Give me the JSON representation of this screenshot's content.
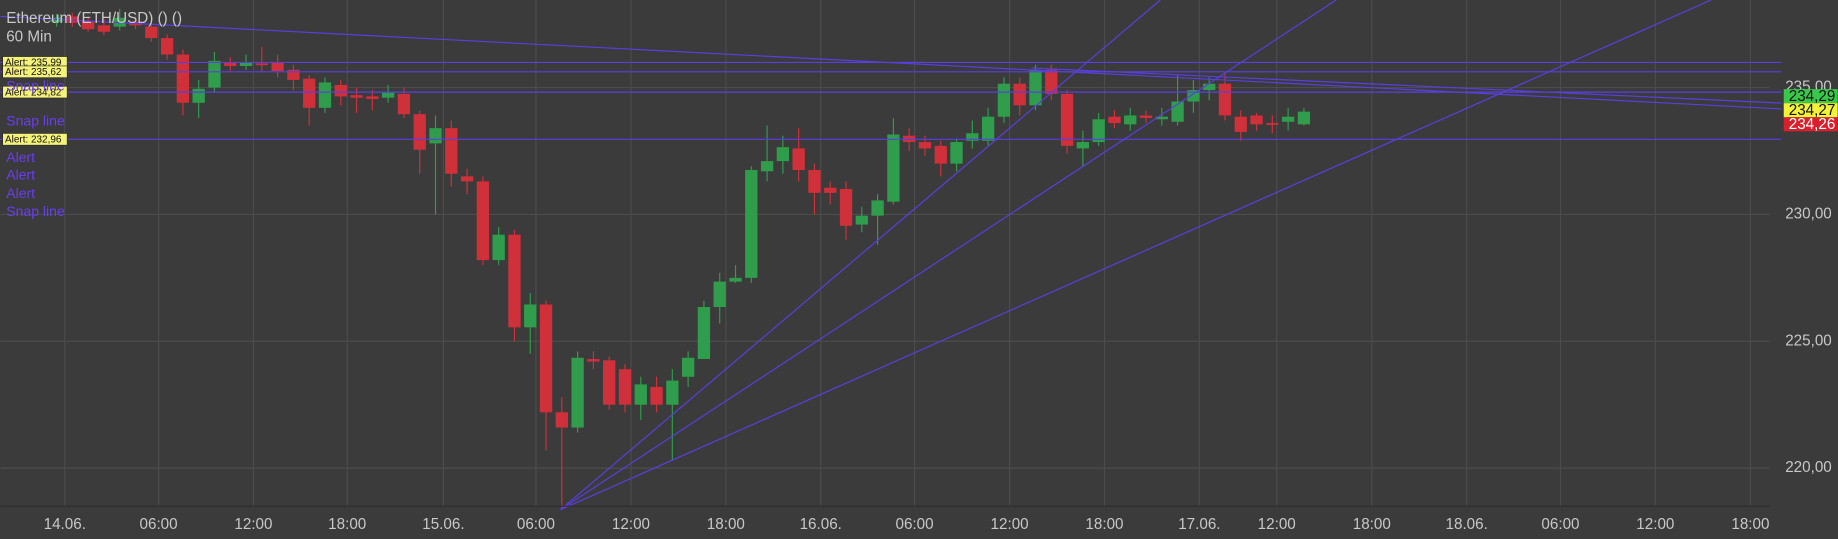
{
  "chart_data": {
    "type": "candlestick",
    "title": "Ethereum (ETH/USD) () ()",
    "subtitle": "60 Min",
    "categories": [
      null,
      null,
      null,
      null,
      null,
      null,
      null,
      null,
      null,
      null,
      null,
      null,
      null,
      null,
      null,
      null,
      null,
      null,
      null,
      null,
      null,
      null,
      null,
      null,
      null,
      null,
      null,
      null,
      null,
      null,
      null,
      null,
      null,
      null,
      null,
      null,
      null,
      null,
      null,
      null,
      null,
      null,
      null,
      null,
      null,
      null,
      null,
      null,
      null,
      null,
      null,
      null,
      null,
      null,
      null,
      null,
      null,
      null,
      null,
      null,
      null,
      null,
      null,
      null,
      null,
      null,
      null,
      null,
      null,
      null,
      null,
      null,
      null,
      null,
      null,
      null,
      null,
      null,
      null,
      null
    ],
    "open": [
      237.6,
      237.8,
      237.6,
      237.45,
      237.4,
      237.6,
      237.4,
      236.95,
      236.3,
      234.4,
      235.0,
      236.0,
      235.85,
      235.95,
      236.0,
      235.7,
      235.35,
      234.2,
      235.1,
      234.7,
      234.65,
      234.6,
      234.75,
      233.95,
      232.8,
      233.4,
      231.5,
      231.3,
      228.2,
      229.2,
      225.55,
      226.45,
      222.2,
      221.6,
      224.3,
      224.25,
      223.9,
      222.5,
      223.2,
      222.5,
      223.6,
      224.3,
      226.35,
      227.35,
      227.5,
      231.7,
      232.1,
      232.6,
      231.75,
      231.05,
      231.0,
      229.6,
      229.95,
      230.5,
      233.1,
      232.85,
      232.7,
      232.0,
      232.9,
      232.9,
      233.85,
      235.15,
      234.3,
      235.7,
      234.75,
      232.6,
      232.85,
      233.85,
      233.55,
      233.9,
      233.75,
      233.65,
      234.45,
      234.9,
      235.15,
      233.85,
      233.9,
      233.6,
      233.65,
      233.55
    ],
    "high": [
      237.9,
      237.95,
      237.8,
      237.7,
      238.1,
      237.8,
      237.6,
      237.1,
      236.5,
      235.3,
      236.4,
      236.2,
      236.3,
      236.6,
      236.3,
      235.9,
      235.5,
      235.4,
      235.3,
      235.0,
      234.9,
      235.1,
      235.0,
      234.1,
      233.9,
      233.7,
      231.8,
      231.5,
      229.5,
      229.4,
      226.9,
      226.6,
      222.8,
      224.6,
      224.6,
      224.4,
      224.1,
      223.6,
      223.6,
      223.9,
      224.6,
      226.6,
      227.7,
      228.0,
      231.9,
      233.5,
      233.1,
      233.4,
      232.0,
      231.3,
      231.3,
      230.3,
      230.8,
      233.8,
      233.4,
      233.1,
      232.9,
      233.0,
      233.7,
      234.2,
      235.4,
      235.4,
      235.9,
      235.9,
      234.9,
      233.3,
      234.0,
      234.1,
      234.2,
      234.1,
      234.2,
      235.5,
      235.3,
      235.4,
      235.6,
      234.1,
      234.0,
      233.9,
      234.2,
      234.2
    ],
    "low": [
      237.4,
      237.4,
      237.2,
      237.05,
      237.25,
      237.3,
      236.8,
      236.1,
      233.9,
      233.8,
      234.8,
      235.6,
      235.7,
      235.6,
      235.4,
      234.9,
      233.5,
      234.0,
      234.3,
      234.0,
      234.1,
      234.4,
      233.8,
      231.6,
      230.0,
      231.1,
      230.8,
      228.0,
      228.0,
      225.0,
      224.5,
      220.7,
      218.4,
      221.4,
      223.9,
      222.3,
      222.2,
      221.9,
      222.2,
      220.3,
      223.2,
      224.3,
      225.7,
      227.3,
      227.3,
      231.3,
      231.6,
      231.3,
      230.0,
      230.4,
      229.0,
      229.3,
      228.8,
      230.4,
      232.5,
      232.3,
      231.5,
      231.7,
      232.6,
      232.7,
      233.6,
      233.9,
      234.1,
      234.5,
      232.4,
      231.9,
      232.7,
      233.4,
      233.3,
      233.6,
      233.5,
      233.5,
      234.0,
      234.5,
      233.7,
      232.9,
      233.3,
      233.2,
      233.3,
      233.5
    ],
    "close": [
      237.75,
      237.55,
      237.3,
      237.2,
      237.75,
      237.45,
      236.95,
      236.3,
      234.4,
      234.95,
      236.05,
      235.85,
      236.0,
      235.9,
      235.65,
      235.3,
      234.2,
      235.2,
      234.65,
      234.6,
      234.55,
      234.8,
      233.95,
      232.55,
      233.4,
      231.6,
      231.3,
      228.2,
      229.2,
      225.55,
      226.45,
      222.2,
      221.6,
      224.35,
      224.2,
      222.5,
      222.5,
      223.3,
      222.5,
      223.45,
      224.35,
      226.35,
      227.35,
      227.5,
      231.75,
      232.1,
      232.65,
      231.75,
      230.85,
      230.85,
      229.55,
      229.95,
      230.55,
      233.15,
      232.85,
      232.6,
      232.0,
      232.85,
      233.2,
      233.85,
      235.15,
      234.3,
      235.7,
      234.75,
      232.7,
      232.85,
      233.75,
      233.6,
      233.9,
      233.8,
      233.85,
      234.45,
      234.9,
      235.15,
      233.9,
      233.25,
      233.55,
      233.55,
      233.85,
      234.05
    ],
    "up_color": "#2f9d4b",
    "down_color": "#d0303a",
    "ylim": [
      218.5,
      238.45
    ],
    "yticks": [
      {
        "value": 220,
        "label": "220,00"
      },
      {
        "value": 225,
        "label": "225,00"
      },
      {
        "value": 230,
        "label": "230,00"
      },
      {
        "value": 235,
        "label": "235,00"
      }
    ],
    "xlim": [
      -3.56,
      108.5
    ],
    "xticks": [
      {
        "value": 0.52,
        "label": "14.06."
      },
      {
        "value": 6.46,
        "label": "06:00"
      },
      {
        "value": 12.47,
        "label": "12:00"
      },
      {
        "value": 18.41,
        "label": "18:00"
      },
      {
        "value": 24.5,
        "label": "15.06."
      },
      {
        "value": 30.36,
        "label": "06:00"
      },
      {
        "value": 36.38,
        "label": "12:00"
      },
      {
        "value": 42.39,
        "label": "18:00"
      },
      {
        "value": 48.4,
        "label": "16.06."
      },
      {
        "value": 54.34,
        "label": "06:00"
      },
      {
        "value": 60.36,
        "label": "12:00"
      },
      {
        "value": 66.37,
        "label": "18:00"
      },
      {
        "value": 72.38,
        "label": "17.06."
      },
      {
        "value": 77.28,
        "label": "12:00"
      },
      {
        "value": 83.3,
        "label": "18:00"
      },
      {
        "value": 89.31,
        "label": "18.06."
      },
      {
        "value": 95.25,
        "label": "06:00"
      },
      {
        "value": 101.26,
        "label": "12:00"
      },
      {
        "value": 107.28,
        "label": "18:00"
      }
    ],
    "grid": true,
    "alerts": [
      {
        "value": 235.99,
        "label": "Alert: 235,99"
      },
      {
        "value": 235.62,
        "label": "Alert: 235,62"
      },
      {
        "value": 234.82,
        "label": "Alert: 234,82"
      },
      {
        "value": 232.96,
        "label": "Alert: 232,96"
      }
    ],
    "price_labels": [
      {
        "value": 234.29,
        "label": "234,29",
        "color": "#39c84a"
      },
      {
        "value": 234.27,
        "label": "234,27",
        "color": "#f2f23a"
      },
      {
        "value": 234.26,
        "label": "234,26",
        "color": "#d8202c"
      }
    ],
    "drawing_labels": [
      "Snap line",
      "Snap line",
      "Alert",
      "Alert",
      "Alert",
      "Snap line"
    ]
  }
}
